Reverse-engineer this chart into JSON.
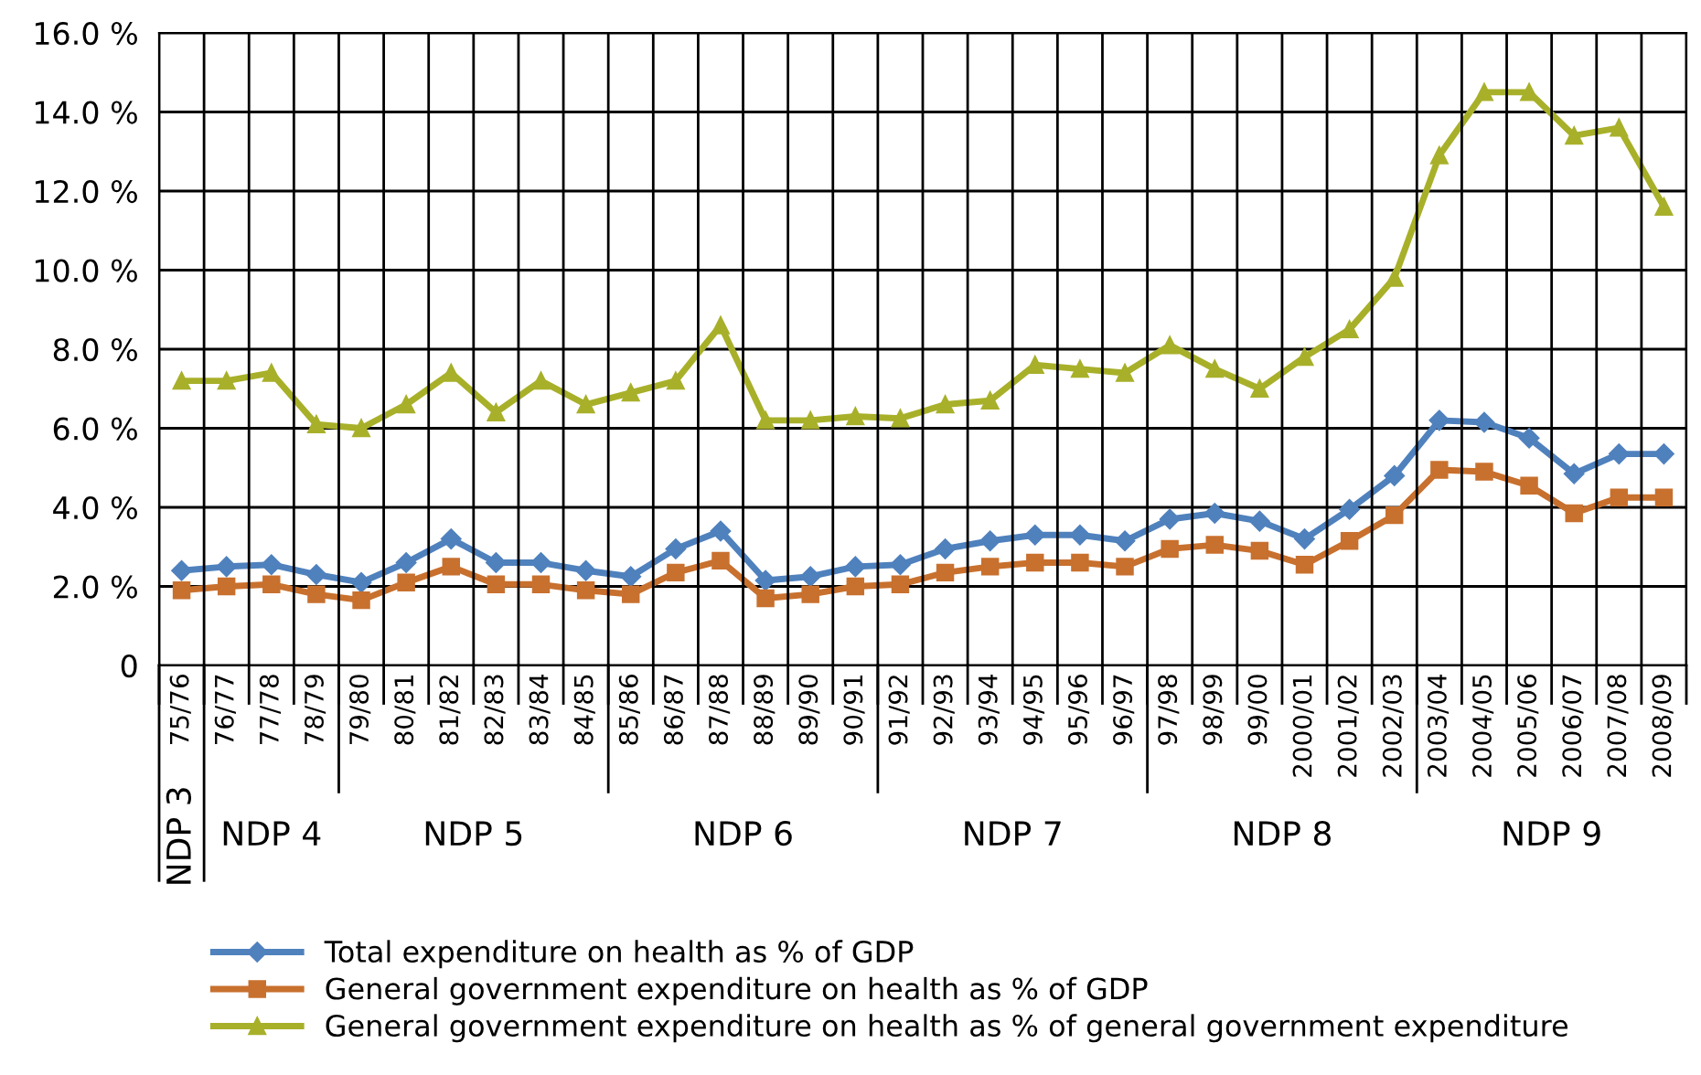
{
  "chart_data": {
    "type": "line",
    "categories": [
      "75/76",
      "76/77",
      "77/78",
      "78/79",
      "79/80",
      "80/81",
      "81/82",
      "82/83",
      "83/84",
      "84/85",
      "85/86",
      "86/87",
      "87/88",
      "88/89",
      "89/90",
      "90/91",
      "91/92",
      "92/93",
      "93/94",
      "94/95",
      "95/96",
      "96/97",
      "97/98",
      "98/99",
      "99/00",
      "2000/01",
      "2001/02",
      "2002/03",
      "2003/04",
      "2004/05",
      "2005/06",
      "2006/07",
      "2007/08",
      "2008/09"
    ],
    "series": [
      {
        "name": "Total expenditure on health as % of GDP",
        "color": "#4f81bd",
        "marker": "diamond",
        "values": [
          2.4,
          2.5,
          2.55,
          2.3,
          2.1,
          2.6,
          3.2,
          2.6,
          2.6,
          2.4,
          2.25,
          2.95,
          3.4,
          2.15,
          2.25,
          2.5,
          2.55,
          2.95,
          3.15,
          3.3,
          3.3,
          3.15,
          3.7,
          3.85,
          3.65,
          3.2,
          3.95,
          4.8,
          6.2,
          6.15,
          5.75,
          4.85,
          5.35,
          5.35
        ]
      },
      {
        "name": "General government expenditure on health as % of GDP",
        "color": "#c8702e",
        "marker": "square",
        "values": [
          1.9,
          2.0,
          2.05,
          1.8,
          1.65,
          2.1,
          2.5,
          2.05,
          2.05,
          1.9,
          1.8,
          2.35,
          2.65,
          1.7,
          1.8,
          2.0,
          2.05,
          2.35,
          2.5,
          2.6,
          2.6,
          2.5,
          2.95,
          3.05,
          2.9,
          2.55,
          3.15,
          3.8,
          4.95,
          4.9,
          4.55,
          3.85,
          4.25,
          4.25
        ]
      },
      {
        "name": "General government expenditure on health as % of general government expenditure",
        "color": "#a8b02a",
        "marker": "triangle",
        "values": [
          7.2,
          7.2,
          7.4,
          6.1,
          6.0,
          6.6,
          7.4,
          6.4,
          7.2,
          6.6,
          6.9,
          7.2,
          8.6,
          6.2,
          6.2,
          6.3,
          6.25,
          6.6,
          6.7,
          7.6,
          7.5,
          7.4,
          8.1,
          7.5,
          7.0,
          7.8,
          8.5,
          9.8,
          12.9,
          14.5,
          14.5,
          13.4,
          13.6,
          11.6
        ]
      }
    ],
    "ylim": [
      0,
      16
    ],
    "yticks": [
      {
        "value": 0,
        "label": "0"
      },
      {
        "value": 2,
        "label": "2.0 %"
      },
      {
        "value": 4,
        "label": "4.0 %"
      },
      {
        "value": 6,
        "label": "6.0 %"
      },
      {
        "value": 8,
        "label": "8.0 %"
      },
      {
        "value": 10,
        "label": "10.0 %"
      },
      {
        "value": 12,
        "label": "12.0 %"
      },
      {
        "value": 14,
        "label": "14.0 %"
      },
      {
        "value": 16,
        "label": "16.0 %"
      }
    ],
    "annotations": [
      "NDP 3",
      "NDP 4",
      "NDP 5",
      "NDP 6",
      "NDP 7",
      "NDP 8",
      "NDP 9"
    ],
    "grid": true,
    "legend": "bottom",
    "line_style": "solid"
  }
}
